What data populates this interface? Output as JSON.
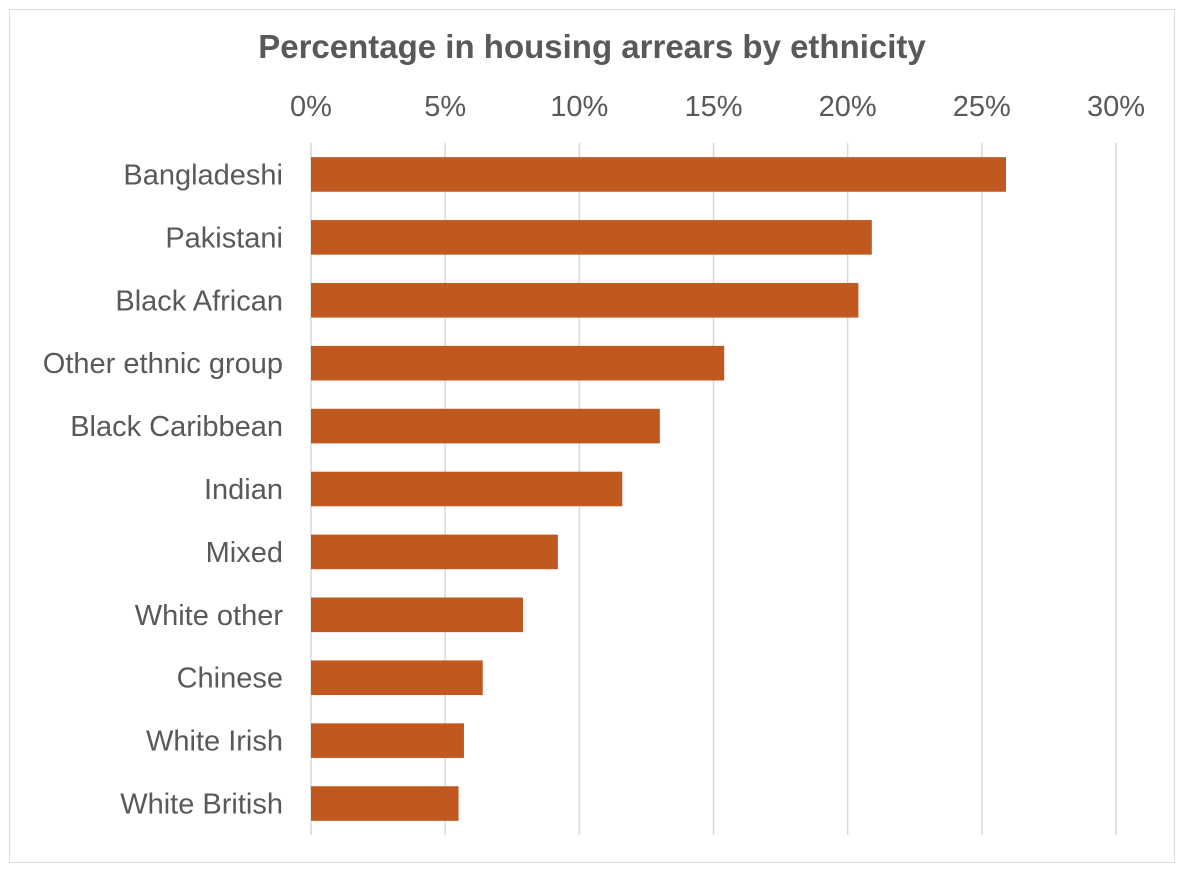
{
  "chart_data": {
    "type": "bar",
    "orientation": "horizontal",
    "title": "Percentage in housing arrears by ethnicity",
    "categories": [
      "Bangladeshi",
      "Pakistani",
      "Black African",
      "Other ethnic group",
      "Black Caribbean",
      "Indian",
      "Mixed",
      "White other",
      "Chinese",
      "White Irish",
      "White British"
    ],
    "values": [
      25.9,
      20.9,
      20.4,
      15.4,
      13.0,
      11.6,
      9.2,
      7.9,
      6.4,
      5.7,
      5.5
    ],
    "x_ticks": [
      "0%",
      "5%",
      "10%",
      "15%",
      "20%",
      "25%",
      "30%"
    ],
    "xlim": [
      0,
      30
    ],
    "x_axis_position": "top",
    "grid": true,
    "bar_color": "#c0581f"
  }
}
